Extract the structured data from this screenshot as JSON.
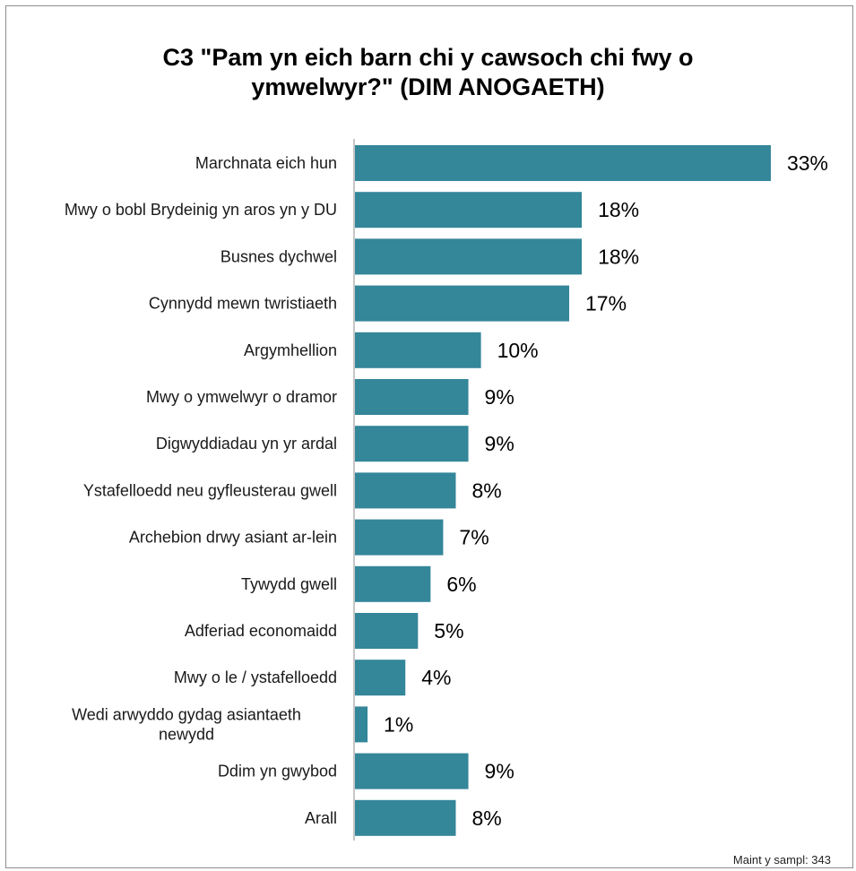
{
  "chart_data": {
    "type": "bar",
    "orientation": "horizontal",
    "title_lines": [
      "C3 \"Pam yn eich barn chi y cawsoch chi fwy o",
      "ymwelwyr?\" (DIM ANOGAETH)"
    ],
    "categories": [
      "Marchnata eich hun",
      "Mwy o bobl Brydeinig yn aros yn y DU",
      "Busnes dychwel",
      "Cynnydd mewn twristiaeth",
      "Argymhellion",
      "Mwy o ymwelwyr o dramor",
      "Digwyddiadau yn yr ardal",
      "Ystafelloedd neu gyfleusterau gwell",
      "Archebion drwy asiant ar-lein",
      "Tywydd gwell",
      "Adferiad economaidd",
      "Mwy o le / ystafelloedd",
      "Wedi arwyddo gydag asiantaeth newydd",
      "Ddim yn gwybod",
      "Arall"
    ],
    "category_lines": [
      [
        "Marchnata eich hun"
      ],
      [
        "Mwy o bobl Brydeinig yn aros yn y DU"
      ],
      [
        "Busnes dychwel"
      ],
      [
        "Cynnydd mewn twristiaeth"
      ],
      [
        "Argymhellion"
      ],
      [
        "Mwy o ymwelwyr o dramor"
      ],
      [
        "Digwyddiadau yn yr ardal"
      ],
      [
        "Ystafelloedd neu gyfleusterau gwell"
      ],
      [
        "Archebion drwy asiant ar-lein"
      ],
      [
        "Tywydd gwell"
      ],
      [
        "Adferiad economaidd"
      ],
      [
        "Mwy o le / ystafelloedd"
      ],
      [
        "Wedi arwyddo gydag asiantaeth",
        "newydd"
      ],
      [
        "Ddim yn gwybod"
      ],
      [
        "Arall"
      ]
    ],
    "values": [
      33,
      18,
      18,
      17,
      10,
      9,
      9,
      8,
      7,
      6,
      5,
      4,
      1,
      9,
      8
    ],
    "value_labels": [
      "33%",
      "18%",
      "18%",
      "17%",
      "10%",
      "9%",
      "9%",
      "8%",
      "7%",
      "6%",
      "5%",
      "4%",
      "1%",
      "9%",
      "8%"
    ],
    "unit": "%",
    "xlim": [
      0,
      35
    ],
    "grid": false,
    "legend": "none",
    "bar_color": "#348699",
    "axis_color": "#8c8c8c"
  },
  "footer": {
    "sample_size": "Maint y sampl: 343"
  }
}
